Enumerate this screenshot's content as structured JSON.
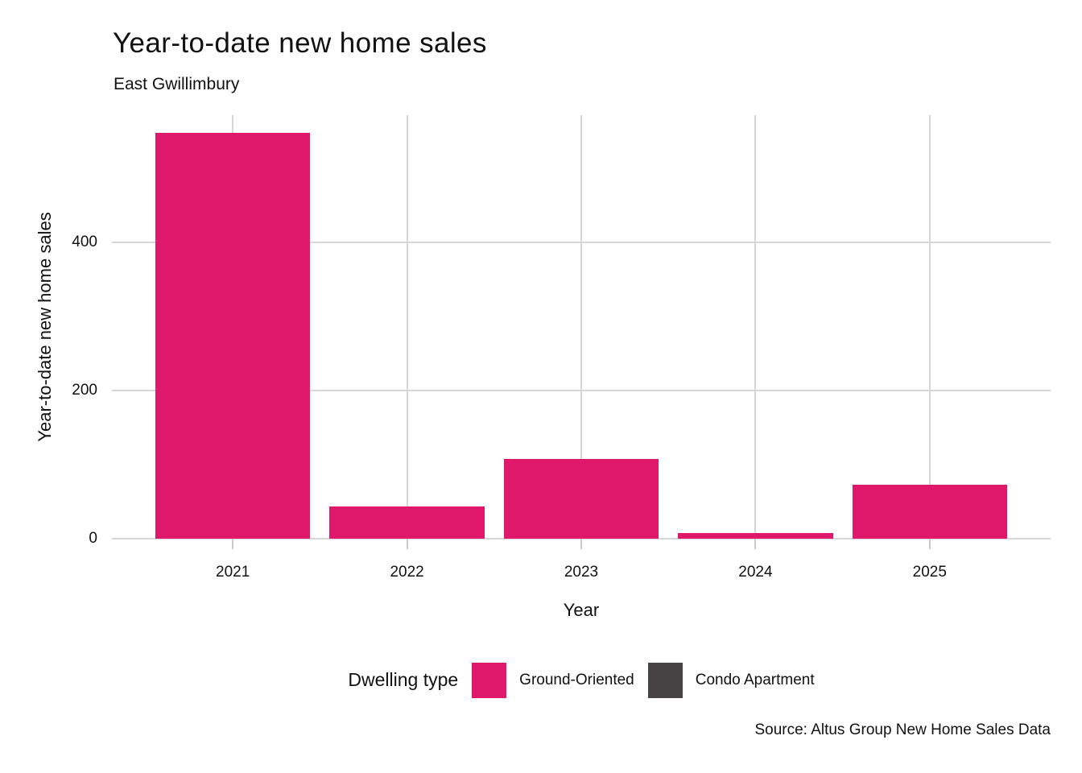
{
  "title": "Year-to-date new home sales",
  "subtitle": "East Gwillimbury",
  "source": "Source: Altus Group New Home Sales Data",
  "legend": {
    "title": "Dwelling type",
    "items": [
      {
        "label": "Ground-Oriented",
        "color": "#E0186C"
      },
      {
        "label": "Condo Apartment",
        "color": "#474344"
      }
    ]
  },
  "chart_data": {
    "type": "bar",
    "title": "Year-to-date new home sales",
    "subtitle": "East Gwillimbury",
    "source": "Source: Altus Group New Home Sales Data",
    "categories": [
      "2021",
      "2022",
      "2023",
      "2024",
      "2025"
    ],
    "series": [
      {
        "name": "Ground-Oriented",
        "color": "#E0186C",
        "values": [
          547,
          43,
          107,
          8,
          73
        ]
      },
      {
        "name": "Condo Apartment",
        "color": "#474344",
        "values": [
          0,
          0,
          0,
          0,
          0
        ]
      }
    ],
    "xlabel": "Year",
    "ylabel": "Year-to-date new home sales",
    "yticks": [
      0,
      200,
      400
    ],
    "ylim": [
      0,
      571
    ],
    "grid": true,
    "legend_position": "bottom",
    "bar_width_fraction": 0.89
  },
  "colors": {
    "background": "#FFFFFF",
    "gridline": "#D6D6D6",
    "axis_tick": "#CACACA",
    "text": "#111111",
    "ground_oriented": "#E0186C",
    "condo_apartment": "#474344"
  }
}
